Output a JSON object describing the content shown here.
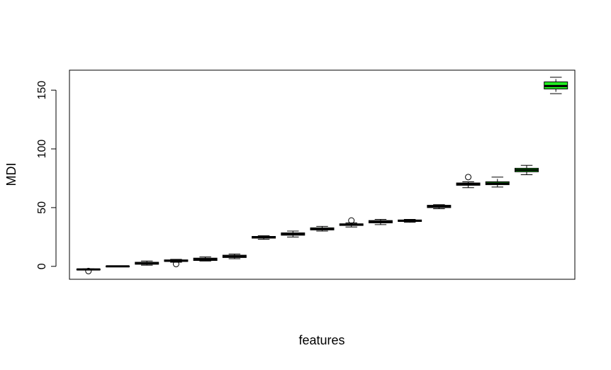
{
  "chart_data": {
    "type": "box",
    "title": "",
    "xlabel": "features",
    "ylabel": "MDI",
    "ylim": [
      -11,
      167
    ],
    "yticks": [
      0,
      50,
      100,
      150
    ],
    "grid": false,
    "legend": "none",
    "box_color": "#22ee22",
    "series": [
      {
        "min": -3,
        "q1": -3,
        "median": -2.6,
        "q3": -2.3,
        "max": -2.1,
        "outliers": [
          -4
        ]
      },
      {
        "min": -0.3,
        "q1": -0.2,
        "median": 0,
        "q3": 0.2,
        "max": 0.3,
        "outliers": []
      },
      {
        "min": 1,
        "q1": 1.8,
        "median": 2.5,
        "q3": 3.5,
        "max": 4.5,
        "outliers": []
      },
      {
        "min": 3.5,
        "q1": 4.2,
        "median": 4.8,
        "q3": 5.5,
        "max": 6,
        "outliers": [
          2
        ]
      },
      {
        "min": 4.5,
        "q1": 5,
        "median": 6,
        "q3": 7,
        "max": 8,
        "outliers": []
      },
      {
        "min": 6.5,
        "q1": 7.5,
        "median": 8.5,
        "q3": 9.5,
        "max": 10.5,
        "outliers": []
      },
      {
        "min": 23,
        "q1": 24,
        "median": 24.6,
        "q3": 25.5,
        "max": 26,
        "outliers": []
      },
      {
        "min": 25,
        "q1": 26.5,
        "median": 27.5,
        "q3": 28.5,
        "max": 30,
        "outliers": []
      },
      {
        "min": 30,
        "q1": 31,
        "median": 31.8,
        "q3": 32.8,
        "max": 34,
        "outliers": []
      },
      {
        "min": 33.5,
        "q1": 34.8,
        "median": 35.5,
        "q3": 36.2,
        "max": 37,
        "outliers": [
          39
        ]
      },
      {
        "min": 35.5,
        "q1": 37,
        "median": 38,
        "q3": 39,
        "max": 40,
        "outliers": []
      },
      {
        "min": 37.5,
        "q1": 38.2,
        "median": 38.8,
        "q3": 39.5,
        "max": 40,
        "outliers": []
      },
      {
        "min": 49,
        "q1": 50,
        "median": 51,
        "q3": 52,
        "max": 52.5,
        "outliers": []
      },
      {
        "min": 67,
        "q1": 69,
        "median": 70,
        "q3": 71,
        "max": 72,
        "outliers": [
          76
        ]
      },
      {
        "min": 67.5,
        "q1": 69.5,
        "median": 70.5,
        "q3": 72,
        "max": 76,
        "outliers": []
      },
      {
        "min": 78,
        "q1": 80.5,
        "median": 82,
        "q3": 83.5,
        "max": 86,
        "outliers": []
      },
      {
        "min": 147,
        "q1": 151,
        "median": 153.5,
        "q3": 157,
        "max": 161,
        "outliers": []
      }
    ]
  }
}
